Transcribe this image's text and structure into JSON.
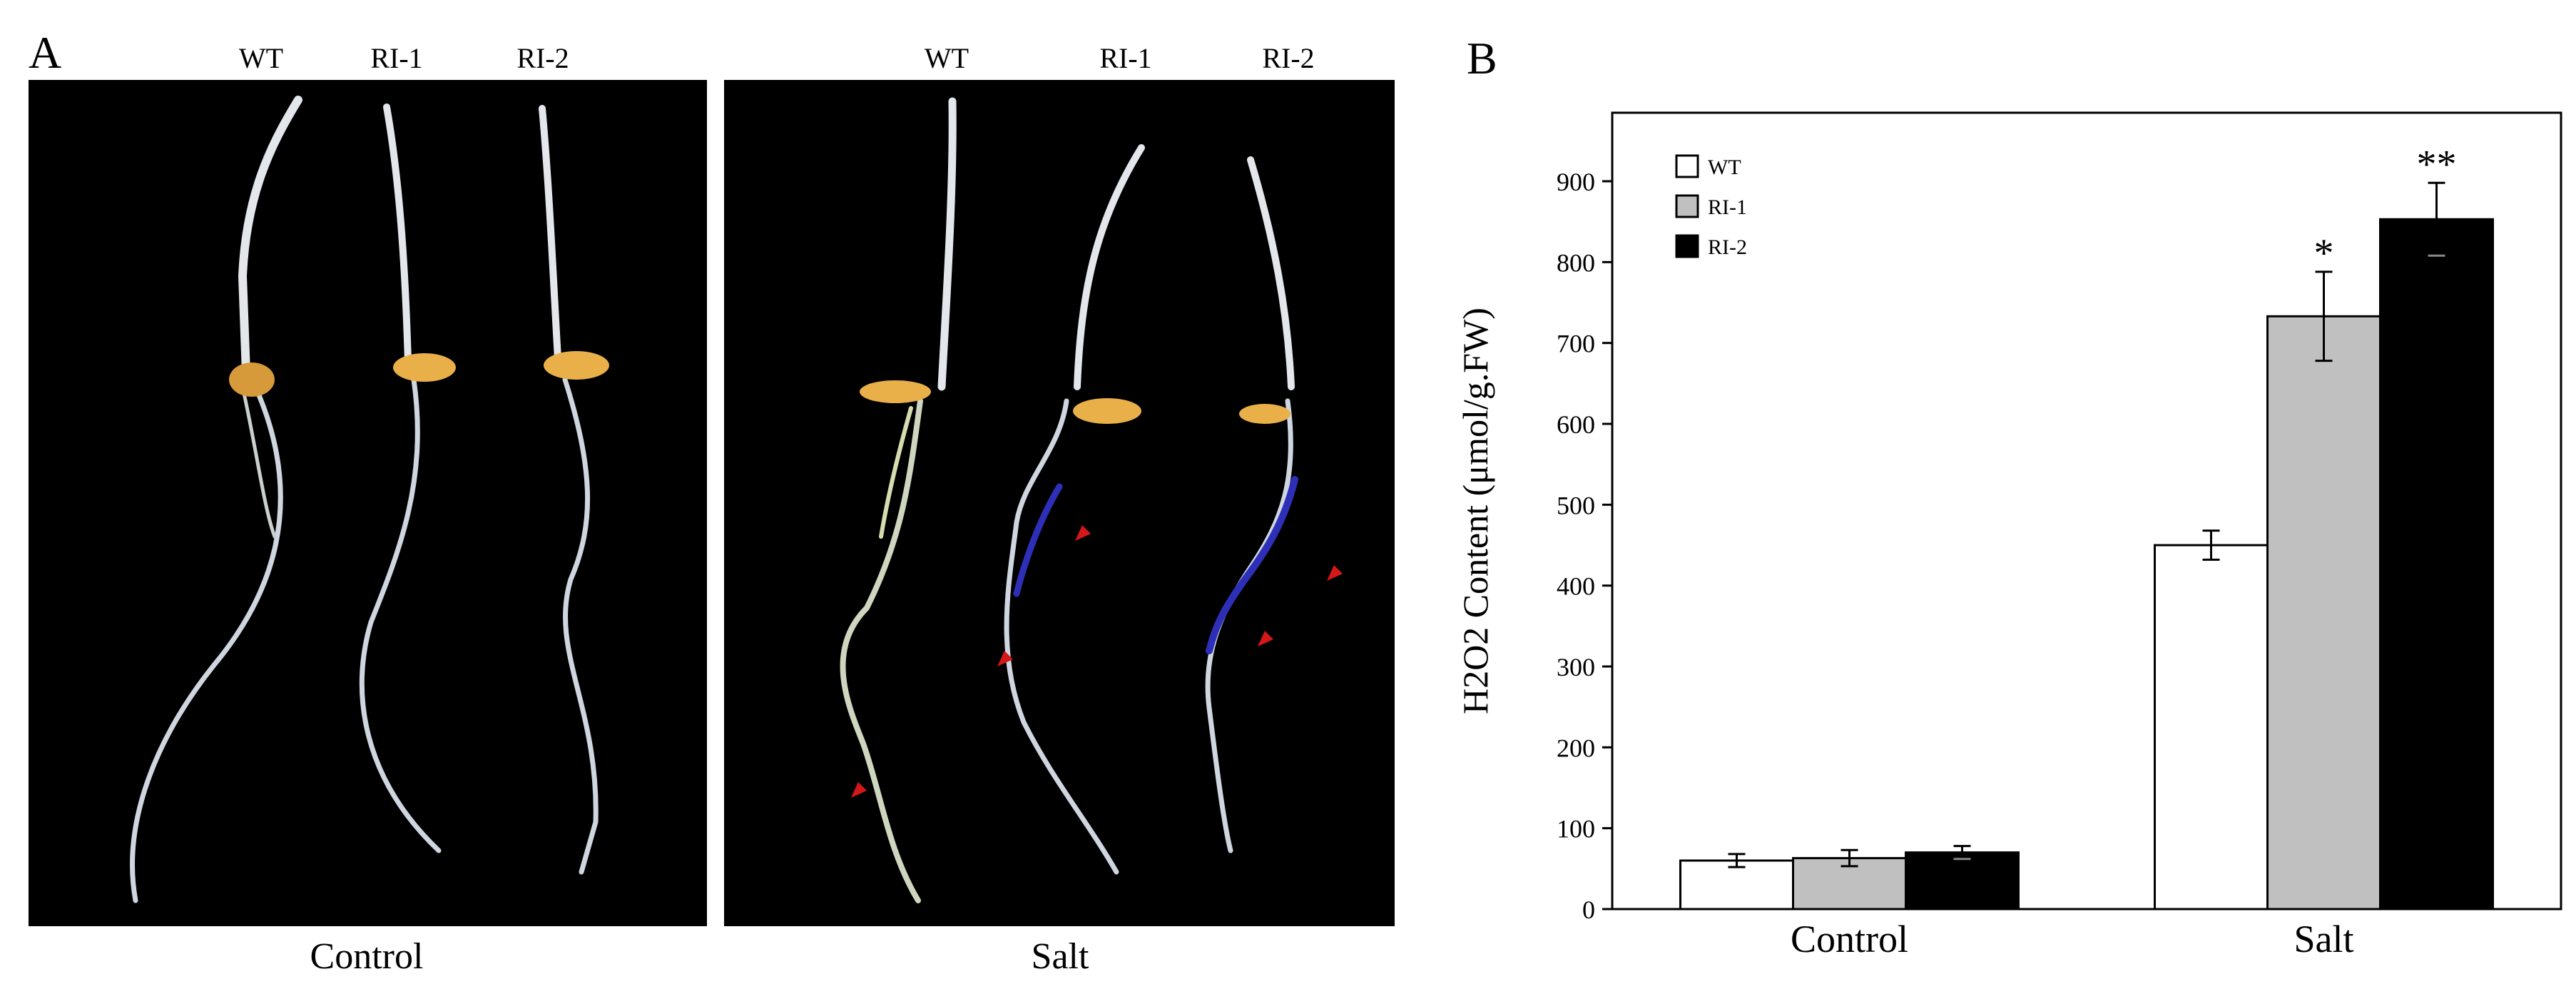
{
  "panel_a": {
    "letter": "A",
    "photos": [
      {
        "condition": "Control",
        "genotypes": [
          "WT",
          "RI-1",
          "RI-2"
        ]
      },
      {
        "condition": "Salt",
        "genotypes": [
          "WT",
          "RI-1",
          "RI-2"
        ]
      }
    ],
    "colors": {
      "background": "#000000",
      "seedling": "#e3e6ea",
      "seed": "#e9a93a",
      "stain": "#2e2fb8",
      "arrow": "#d41717"
    }
  },
  "panel_b": {
    "letter": "B"
  },
  "chart_data": {
    "type": "bar",
    "categories": [
      "Control",
      "Salt"
    ],
    "series": [
      {
        "name": "WT",
        "values": [
          60,
          450
        ],
        "errors": [
          8,
          18
        ],
        "significance": [
          "",
          ""
        ],
        "color": "#ffffff"
      },
      {
        "name": "RI-1",
        "values": [
          63,
          733
        ],
        "errors": [
          10,
          55
        ],
        "significance": [
          "",
          "*"
        ],
        "color": "#c0c0c0"
      },
      {
        "name": "RI-2",
        "values": [
          70,
          853
        ],
        "errors": [
          8,
          45
        ],
        "significance": [
          "",
          "**"
        ],
        "color": "#000000"
      }
    ],
    "ylabel": "H2O2 Content (μmol/g.FW)",
    "ylim": [
      0,
      900
    ],
    "yticks": [
      0,
      100,
      200,
      300,
      400,
      500,
      600,
      700,
      800,
      900
    ],
    "grid": false,
    "legend_position": "top-left"
  }
}
